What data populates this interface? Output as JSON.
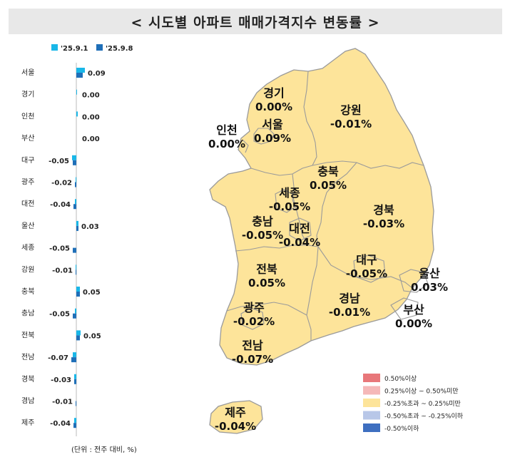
{
  "title": "< 시도별 아파트 매매가격지수 변동률 >",
  "unit_note": "(단위 : 전주 대비, %)",
  "chart_data": {
    "type": "bar",
    "orientation": "horizontal",
    "categories": [
      "서울",
      "경기",
      "인천",
      "부산",
      "대구",
      "광주",
      "대전",
      "울산",
      "세종",
      "강원",
      "충북",
      "충남",
      "전북",
      "전남",
      "경북",
      "경남",
      "제주"
    ],
    "series": [
      {
        "name": "'25.9.1",
        "color": "#19b7e8",
        "values": [
          0.12,
          0.01,
          0.02,
          0.0,
          -0.06,
          -0.01,
          -0.02,
          0.03,
          0.0,
          -0.01,
          0.05,
          -0.02,
          0.06,
          -0.05,
          -0.03,
          0.0,
          -0.03
        ]
      },
      {
        "name": "'25.9.8",
        "color": "#1f6fb8",
        "values": [
          0.09,
          0.0,
          0.0,
          0.0,
          -0.05,
          -0.02,
          -0.04,
          0.03,
          -0.05,
          -0.01,
          0.05,
          -0.05,
          0.05,
          -0.07,
          -0.03,
          -0.01,
          -0.04
        ]
      }
    ],
    "data_labels": [
      "0.09",
      "0.00",
      "0.00",
      "0.00",
      "-0.05",
      "-0.02",
      "-0.04",
      "0.03",
      "-0.05",
      "-0.01",
      "0.05",
      "-0.05",
      "0.05",
      "-0.07",
      "-0.03",
      "-0.01",
      "-0.04"
    ]
  },
  "map": {
    "regions": [
      {
        "name": "경기",
        "value": "0.00%"
      },
      {
        "name": "서울",
        "value": "0.09%"
      },
      {
        "name": "인천",
        "value": "0.00%"
      },
      {
        "name": "강원",
        "value": "-0.01%"
      },
      {
        "name": "충북",
        "value": "0.05%"
      },
      {
        "name": "세종",
        "value": "-0.05%"
      },
      {
        "name": "충남",
        "value": "-0.05%"
      },
      {
        "name": "대전",
        "value": "-0.04%"
      },
      {
        "name": "경북",
        "value": "-0.03%"
      },
      {
        "name": "대구",
        "value": "-0.05%"
      },
      {
        "name": "울산",
        "value": "0.03%"
      },
      {
        "name": "전북",
        "value": "0.05%"
      },
      {
        "name": "경남",
        "value": "-0.01%"
      },
      {
        "name": "부산",
        "value": "0.00%"
      },
      {
        "name": "광주",
        "value": "-0.02%"
      },
      {
        "name": "전남",
        "value": "-0.07%"
      },
      {
        "name": "제주",
        "value": "-0.04%"
      }
    ],
    "map_fill": "#fde49a",
    "legend": [
      {
        "label": "0.50%이상",
        "color": "#e8777a"
      },
      {
        "label": "0.25%이상 ~ 0.50%미만",
        "color": "#f5b8b8"
      },
      {
        "label": "-0.25%초과 ~ 0.25%미만",
        "color": "#fde49a"
      },
      {
        "label": "-0.50%초과 ~ -0.25%이하",
        "color": "#b8c7e8"
      },
      {
        "label": "-0.50%이하",
        "color": "#3e6fc0"
      }
    ]
  }
}
